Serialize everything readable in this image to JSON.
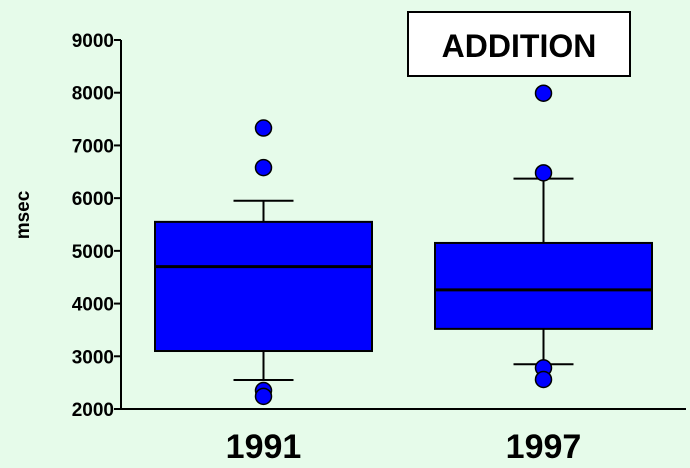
{
  "chart_data": {
    "type": "boxplot",
    "title": "ADDITION",
    "ylabel": "msec",
    "xlabel": "",
    "ylim": [
      2000,
      9000
    ],
    "yticks": [
      2000,
      3000,
      4000,
      5000,
      6000,
      7000,
      8000,
      9000
    ],
    "categories": [
      "1991",
      "1997"
    ],
    "boxes": [
      {
        "category": "1991",
        "whisker_low": 2550,
        "q1": 3100,
        "median": 4700,
        "q3": 5550,
        "whisker_high": 5950,
        "outliers": [
          7330,
          6580,
          2350,
          2240
        ]
      },
      {
        "category": "1997",
        "whisker_low": 2850,
        "q1": 3520,
        "median": 4260,
        "q3": 5150,
        "whisker_high": 6370,
        "outliers": [
          7990,
          6480,
          2780,
          2560
        ]
      }
    ],
    "box_color": "#0000ff",
    "outlier_color": "#0000ff",
    "background_color": "#e6fbea",
    "grid": false,
    "legend": "none"
  }
}
